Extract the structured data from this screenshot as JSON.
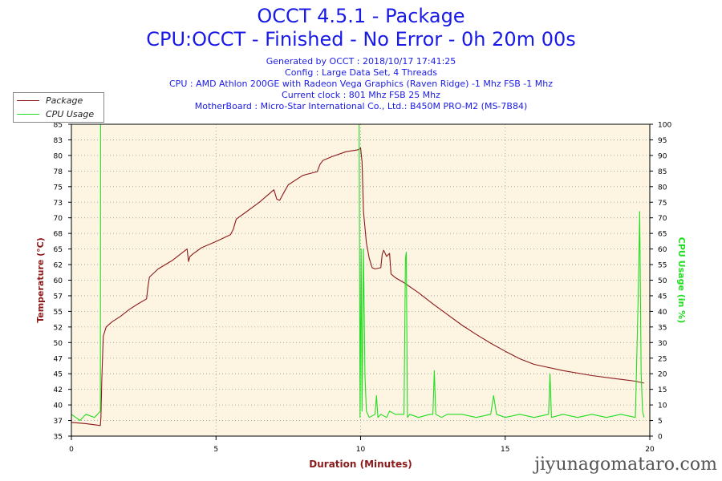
{
  "header": {
    "title": "OCCT 4.5.1 - Package",
    "subtitle": "CPU:OCCT - Finished - No Error - 0h 20m 00s",
    "generated": "Generated by OCCT : 2018/10/17 17:41:25",
    "config": "Config : Large Data Set, 4 Threads",
    "cpu": "CPU : AMD Athlon 200GE with Radeon Vega Graphics (Raven Ridge) -1 Mhz FSB -1 Mhz",
    "clock": "Current clock : 801 Mhz FSB 25 Mhz",
    "motherboard": "MotherBoard : Micro-Star International Co., Ltd.: B450M PRO-M2 (MS-7B84)"
  },
  "watermark": "jiyunagomataro.com",
  "colors": {
    "temperature": "#8b1a1a",
    "usage": "#22dd22",
    "header": "#1a1ae6",
    "plot_bg": "#fdf4e2",
    "grid": "#9a9a9a"
  },
  "chart_data": {
    "type": "line",
    "xlabel": "Duration (Minutes)",
    "xlim": [
      0,
      20
    ],
    "x_ticks": [
      "0",
      "5",
      "10",
      "15",
      "20"
    ],
    "y_left": {
      "label": "Temperature (°C)",
      "lim": [
        35,
        85
      ],
      "ticks": [
        "35",
        "37",
        "40",
        "42",
        "45",
        "47",
        "50",
        "52",
        "55",
        "57",
        "60",
        "62",
        "65",
        "68",
        "70",
        "73",
        "75",
        "78",
        "80",
        "83",
        "85"
      ]
    },
    "y_right": {
      "label": "CPU Usage (in %)",
      "lim": [
        0,
        100
      ],
      "ticks": [
        "0",
        "5",
        "10",
        "15",
        "20",
        "25",
        "30",
        "35",
        "40",
        "45",
        "50",
        "55",
        "60",
        "65",
        "70",
        "75",
        "80",
        "85",
        "90",
        "95",
        "100"
      ]
    },
    "legend": "top-left",
    "grid": true,
    "series": [
      {
        "name": "Package",
        "axis": "left",
        "x": [
          0,
          0.5,
          1.0,
          1.02,
          1.05,
          1.1,
          1.2,
          1.4,
          1.7,
          2.0,
          2.3,
          2.6,
          2.65,
          2.7,
          3.0,
          3.5,
          4.0,
          4.05,
          4.1,
          4.2,
          4.5,
          5.0,
          5.5,
          5.6,
          5.7,
          6.0,
          6.5,
          7.0,
          7.1,
          7.2,
          7.4,
          7.5,
          8.0,
          8.5,
          8.6,
          8.7,
          9.0,
          9.5,
          9.9,
          9.95,
          10.0,
          10.05,
          10.1,
          10.2,
          10.3,
          10.4,
          10.5,
          10.7,
          10.75,
          10.8,
          10.9,
          11.0,
          11.05,
          11.2,
          11.5,
          12.0,
          12.5,
          13.0,
          13.5,
          14.0,
          14.5,
          15.0,
          15.5,
          16.0,
          17.0,
          18.0,
          19.0,
          19.5,
          19.7,
          19.8
        ],
        "values": [
          37.2,
          37.0,
          36.7,
          38.0,
          44.0,
          51.0,
          52.5,
          53.3,
          54.2,
          55.3,
          56.2,
          57.0,
          59.0,
          60.5,
          61.8,
          63.2,
          65.0,
          63.0,
          63.8,
          64.2,
          65.2,
          66.2,
          67.3,
          68.2,
          69.8,
          70.8,
          72.5,
          74.5,
          73.0,
          72.8,
          74.5,
          75.3,
          76.8,
          77.4,
          78.6,
          79.2,
          79.8,
          80.6,
          80.9,
          81.0,
          81.2,
          79.0,
          71.0,
          66.0,
          63.5,
          62.0,
          61.8,
          62.0,
          64.2,
          64.8,
          63.8,
          64.3,
          61.0,
          60.4,
          59.6,
          58.0,
          56.2,
          54.5,
          52.8,
          51.3,
          49.9,
          48.6,
          47.4,
          46.5,
          45.5,
          44.7,
          44.1,
          43.8,
          43.6,
          43.5
        ]
      },
      {
        "name": "CPU Usage",
        "axis": "right",
        "x": [
          0,
          0.3,
          0.5,
          0.8,
          1.0,
          1.01,
          1.03,
          9.95,
          9.98,
          10.02,
          10.05,
          10.1,
          10.15,
          10.2,
          10.3,
          10.5,
          10.55,
          10.6,
          10.7,
          10.9,
          11.0,
          11.2,
          11.5,
          11.55,
          11.58,
          11.62,
          11.7,
          12.0,
          12.4,
          12.5,
          12.55,
          12.6,
          12.8,
          13.0,
          13.5,
          14.0,
          14.5,
          14.6,
          14.7,
          15.0,
          15.5,
          16.0,
          16.5,
          16.55,
          16.6,
          17.0,
          17.5,
          18.0,
          18.5,
          19.0,
          19.5,
          19.6,
          19.65,
          19.7,
          19.75,
          19.8
        ],
        "values": [
          7,
          5,
          7,
          6,
          8,
          100,
          100,
          100,
          6,
          60,
          8,
          60,
          20,
          8,
          6,
          7,
          13,
          6,
          7,
          6,
          8,
          7,
          7,
          57,
          59,
          6,
          7,
          6,
          7,
          7,
          21,
          7,
          6,
          7,
          7,
          6,
          7,
          13,
          7,
          6,
          7,
          6,
          7,
          20,
          6,
          7,
          6,
          7,
          6,
          7,
          6,
          45,
          72,
          20,
          8,
          6
        ]
      }
    ]
  }
}
